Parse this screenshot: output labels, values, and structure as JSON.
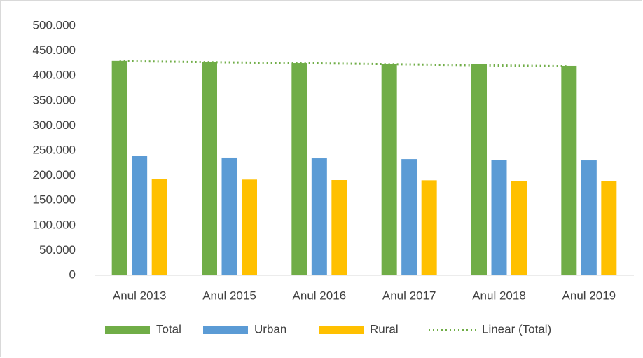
{
  "chart_data": {
    "type": "bar",
    "categories": [
      "Anul 2013",
      "Anul 2015",
      "Anul 2016",
      "Anul 2017",
      "Anul 2018",
      "Anul 2019"
    ],
    "series": [
      {
        "name": "Total",
        "color": "#70ad47",
        "values": [
          430000,
          428000,
          425500,
          424000,
          422800,
          420000
        ]
      },
      {
        "name": "Urban",
        "color": "#5b9bd5",
        "values": [
          238800,
          236000,
          234500,
          233000,
          231700,
          230300
        ]
      },
      {
        "name": "Rural",
        "color": "#ffc000",
        "values": [
          192400,
          192000,
          191000,
          190500,
          189600,
          188200
        ]
      },
      {
        "name": "Linear (Total)",
        "color": "#70ad47",
        "type": "trendline",
        "style": "dotted",
        "values": [
          429500,
          427400,
          425300,
          423200,
          421100,
          419000
        ]
      }
    ],
    "ylim": [
      0,
      500000
    ],
    "yticks": [
      0,
      {
        "value": 50000,
        "label": "50.000"
      },
      {
        "value": 100000,
        "label": "100.000"
      },
      {
        "value": 150000,
        "label": "150.000"
      },
      {
        "value": 200000,
        "label": "200.000"
      },
      {
        "value": 250000,
        "label": "250.000"
      },
      {
        "value": 300000,
        "label": "300.000"
      },
      {
        "value": 350000,
        "label": "350.000"
      },
      {
        "value": 400000,
        "label": "400.000"
      },
      {
        "value": 450000,
        "label": "450.000"
      },
      {
        "value": 500000,
        "label": "500.000"
      }
    ],
    "grid": false,
    "legend": "bottom"
  }
}
